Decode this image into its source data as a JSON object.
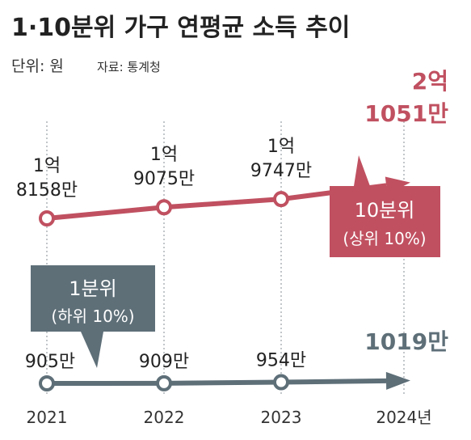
{
  "title": "1·10분위 가구 연평균 소득 추이",
  "unit": "단위: 원",
  "source": "자료: 통계청",
  "colors": {
    "top": "#c05060",
    "bottom": "#5e6f78",
    "grid": "#9aa0a5"
  },
  "chart_data": {
    "type": "line",
    "categories": [
      "2021",
      "2022",
      "2023",
      "2024년"
    ],
    "series": [
      {
        "name": "10분위 (상위 10%)",
        "values": [
          181580000,
          190750000,
          197470000,
          210510000
        ],
        "labels": [
          [
            "1억",
            "8158만"
          ],
          [
            "1억",
            "9075만"
          ],
          [
            "1억",
            "9747만"
          ],
          [
            "2억",
            "1051만"
          ]
        ]
      },
      {
        "name": "1분위 (하위 10%)",
        "values": [
          9050000,
          9090000,
          9540000,
          10190000
        ],
        "labels": [
          [
            "905만"
          ],
          [
            "909만"
          ],
          [
            "954만"
          ],
          [
            "1019만"
          ]
        ]
      }
    ],
    "xlabel": "",
    "ylabel": "",
    "legend": [
      "10분위 (상위 10%)",
      "1분위 (하위 10%)"
    ],
    "grid": "vertical dotted lines at each year"
  },
  "callouts": {
    "top": {
      "line1": "10분위",
      "line2": "(상위 10%)"
    },
    "bottom": {
      "line1": "1분위",
      "line2": "(하위 10%)"
    }
  }
}
